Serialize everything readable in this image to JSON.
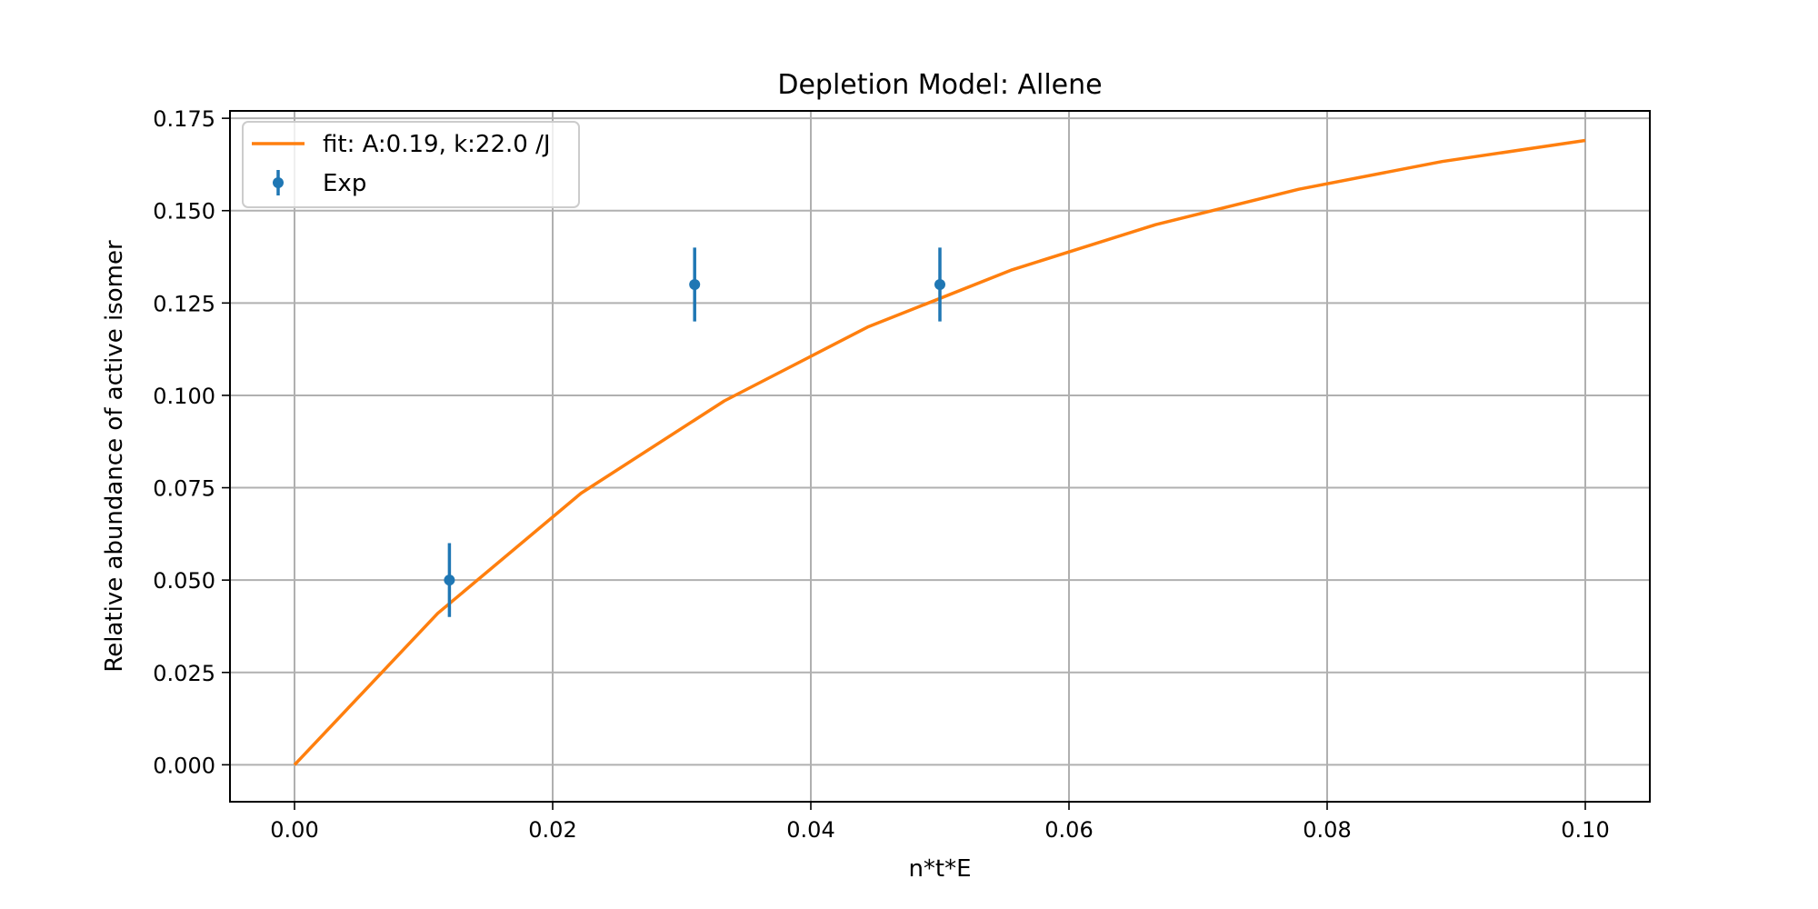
{
  "chart_data": {
    "type": "line",
    "title": "Depletion Model: Allene",
    "xlabel": "n*t*E",
    "ylabel": "Relative abundance of active isomer",
    "xlim": [
      -0.005,
      0.105
    ],
    "ylim": [
      -0.01,
      0.177
    ],
    "grid": true,
    "legend_position": "top-left",
    "x_ticks": [
      {
        "value": 0.0,
        "label": "0.00"
      },
      {
        "value": 0.02,
        "label": "0.02"
      },
      {
        "value": 0.04,
        "label": "0.04"
      },
      {
        "value": 0.06,
        "label": "0.06"
      },
      {
        "value": 0.08,
        "label": "0.08"
      },
      {
        "value": 0.1,
        "label": "0.10"
      }
    ],
    "y_ticks": [
      {
        "value": 0.0,
        "label": "0.000"
      },
      {
        "value": 0.025,
        "label": "0.025"
      },
      {
        "value": 0.05,
        "label": "0.050"
      },
      {
        "value": 0.075,
        "label": "0.075"
      },
      {
        "value": 0.1,
        "label": "0.100"
      },
      {
        "value": 0.125,
        "label": "0.125"
      },
      {
        "value": 0.15,
        "label": "0.150"
      },
      {
        "value": 0.175,
        "label": "0.175"
      }
    ],
    "series": [
      {
        "name": "fit: A:0.19, k:22.0 /J",
        "kind": "line",
        "color": "#ff7f0e",
        "x": [
          0.0,
          0.0111,
          0.0222,
          0.0333,
          0.0444,
          0.0556,
          0.0667,
          0.0778,
          0.0889,
          0.1
        ],
        "y": [
          0.0,
          0.041,
          0.0735,
          0.0985,
          0.1185,
          0.134,
          0.1462,
          0.1558,
          0.1633,
          0.169
        ]
      },
      {
        "name": "Exp",
        "kind": "errorbar",
        "color": "#1f77b4",
        "x": [
          0.012,
          0.031,
          0.05
        ],
        "y": [
          0.05,
          0.13,
          0.13
        ],
        "yerr": [
          0.01,
          0.01,
          0.01
        ]
      }
    ]
  }
}
